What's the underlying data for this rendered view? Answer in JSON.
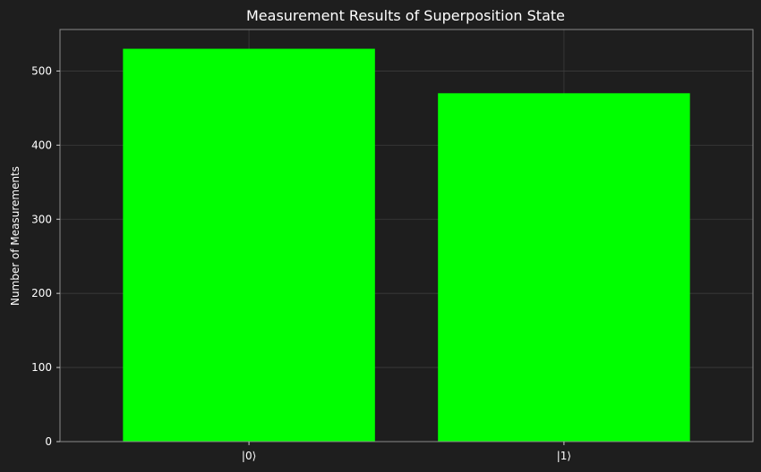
{
  "chart_data": {
    "type": "bar",
    "title": "Measurement Results of Superposition State",
    "xlabel": "",
    "ylabel": "Number of Measurements",
    "categories": [
      "|0⟩",
      "|1⟩"
    ],
    "values": [
      530,
      470
    ],
    "ylim": [
      0,
      556
    ],
    "yticks": [
      0,
      100,
      200,
      300,
      400,
      500
    ],
    "grid": true,
    "colors": {
      "background": "#1e1e1e",
      "bar": "#00ff00",
      "text": "#ffffff",
      "grid": "#3c3c3c",
      "axis": "#8a8a8a"
    }
  }
}
